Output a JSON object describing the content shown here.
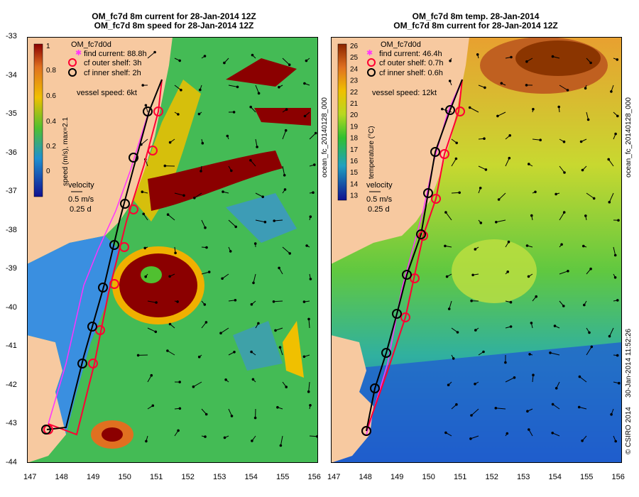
{
  "left_panel": {
    "title_line1": "OM_fc7d 8m current for 28-Jan-2014 12Z",
    "title_line2": "OM_fc7d 8m speed for 28-Jan-2014 12Z",
    "colorbar_label": "speed (m/s),  max=2.1",
    "colorbar_ticks": [
      "1",
      "0.8",
      "0.6",
      "0.4",
      "0.2",
      "0"
    ],
    "legend_title": "OM_fc7d0d",
    "legend_find": "find current: 88.8h",
    "legend_outer": "cf outer shelf: 3h",
    "legend_inner": "cf inner shelf: 2h",
    "vessel_speed": "vessel speed: 6kt",
    "velocity_label": "velocity",
    "velocity_scale": "0.5 m/s",
    "velocity_time": "0.25 d"
  },
  "right_panel": {
    "title_line1": "OM_fc7d 8m temp. 28-Jan-2014",
    "title_line2": "OM_fc7d 8m current for 28-Jan-2014 12Z",
    "colorbar_label": "temperature (°C)",
    "colorbar_ticks": [
      "26",
      "25",
      "24",
      "23",
      "22",
      "21",
      "20",
      "19",
      "18",
      "17",
      "16",
      "15",
      "14",
      "13"
    ],
    "legend_title": "OM_fc7d0d",
    "legend_find": "find current: 46.4h",
    "legend_outer": "cf outer shelf: 0.7h",
    "legend_inner": "cf inner shelf: 0.6h",
    "vessel_speed": "vessel speed: 12kt",
    "velocity_label": "velocity",
    "velocity_scale": "0.5 m/s",
    "velocity_time": "0.25 d"
  },
  "axes": {
    "y_ticks": [
      "-33",
      "-34",
      "-35",
      "-36",
      "-37",
      "-38",
      "-39",
      "-40",
      "-41",
      "-42",
      "-43",
      "-44"
    ],
    "x_ticks": [
      "147",
      "148",
      "149",
      "150",
      "151",
      "152",
      "153",
      "154",
      "155",
      "156"
    ]
  },
  "side_labels": {
    "left_id": "ocean_fc_20140128_000",
    "right_id": "ocean_fc_20140128_000",
    "timestamp": "30-Jan-2014 11:52:26",
    "copyright": "© CSIRO 2014"
  },
  "colors": {
    "land": "#f7c9a0",
    "black_track": "#000000",
    "red_track": "#ff0033",
    "magenta_track": "#ff33ff",
    "panel_border": "#000000"
  }
}
